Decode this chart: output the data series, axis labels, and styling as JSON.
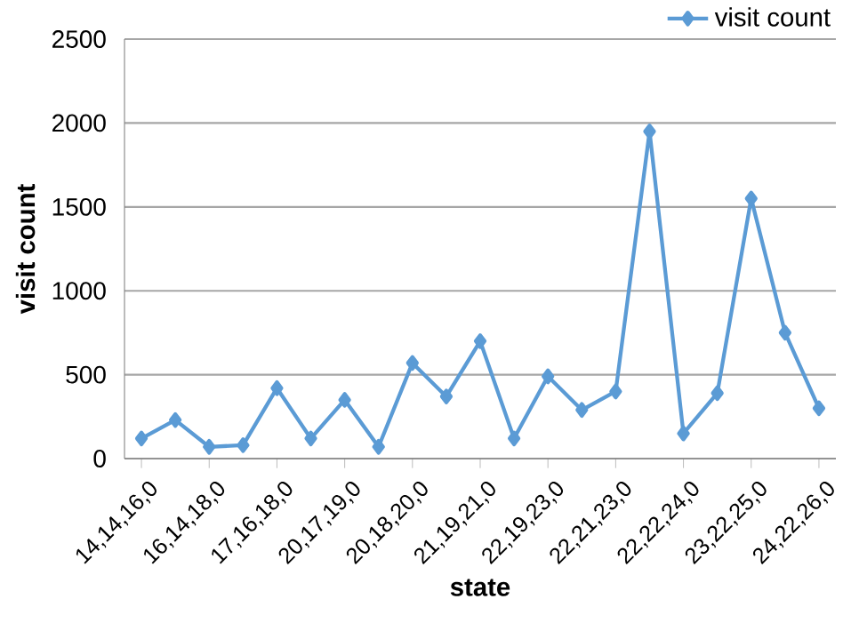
{
  "chart_data": {
    "type": "line",
    "xlabel": "state",
    "ylabel": "visit count",
    "categories": [
      "14,14,16,0",
      null,
      "16,14,18,0",
      null,
      "17,16,18,0",
      null,
      "20,17,19,0",
      null,
      "20,18,20,0",
      null,
      "21,19,21,0",
      null,
      "22,19,23,0",
      null,
      "22,21,23,0",
      null,
      "22,22,24,0",
      null,
      "23,22,25,0",
      null,
      "24,22,26,0"
    ],
    "series": [
      {
        "name": "visit count",
        "color": "#5b9bd5",
        "values": [
          120,
          230,
          70,
          80,
          420,
          120,
          350,
          70,
          570,
          370,
          700,
          120,
          490,
          290,
          400,
          1950,
          150,
          390,
          1550,
          750,
          300
        ]
      }
    ],
    "ylim": [
      0,
      2500
    ],
    "yticks": [
      0,
      500,
      1000,
      1500,
      2000,
      2500
    ],
    "grid": "y",
    "legend": "top right",
    "marker": "diamond",
    "line_style": "solid"
  }
}
